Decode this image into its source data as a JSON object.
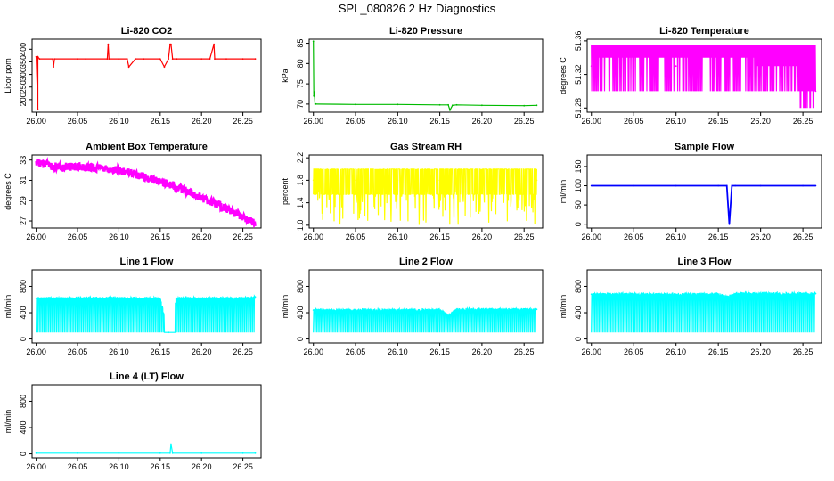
{
  "figure": {
    "title": "SPL_080826  2 Hz Diagnostics"
  },
  "chart_data": [
    {
      "type": "line",
      "title": "Li-820 CO2",
      "xlabel": "",
      "ylabel": "Licor ppm",
      "color": "#ff0000",
      "xlim": [
        25.995,
        26.272
      ],
      "ylim": [
        150,
        440
      ],
      "xticks": [
        26.0,
        26.05,
        26.1,
        26.15,
        26.2,
        26.25
      ],
      "xtick_labels": [
        "26.00",
        "26.05",
        "26.10",
        "26.15",
        "26.20",
        "26.25"
      ],
      "yticks": [
        200,
        250,
        300,
        350,
        400
      ],
      "ytick_labels": [
        "200",
        "250",
        "300",
        "350",
        "400"
      ],
      "series": [
        {
          "name": "CO2",
          "x": [
            26.0,
            26.002,
            26.002,
            26.004,
            26.02,
            26.021,
            26.022,
            26.05,
            26.06,
            26.086,
            26.087,
            26.088,
            26.1,
            26.11,
            26.112,
            26.12,
            26.13,
            26.15,
            26.155,
            26.16,
            26.162,
            26.163,
            26.165,
            26.17,
            26.2,
            26.21,
            26.215,
            26.216,
            26.23,
            26.25,
            26.265
          ],
          "y": [
            370,
            160,
            370,
            362,
            362,
            330,
            362,
            362,
            362,
            362,
            420,
            362,
            362,
            362,
            330,
            362,
            362,
            362,
            330,
            362,
            420,
            420,
            362,
            362,
            362,
            362,
            420,
            362,
            362,
            362,
            362
          ]
        }
      ]
    },
    {
      "type": "line",
      "title": "Li-820 Pressure",
      "xlabel": "",
      "ylabel": "kPa",
      "color": "#00bb00",
      "xlim": [
        25.995,
        26.272
      ],
      "ylim": [
        68,
        86
      ],
      "xticks": [
        26.0,
        26.05,
        26.1,
        26.15,
        26.2,
        26.25
      ],
      "xtick_labels": [
        "26.00",
        "26.05",
        "26.10",
        "26.15",
        "26.20",
        "26.25"
      ],
      "yticks": [
        70,
        75,
        80,
        85
      ],
      "ytick_labels": [
        "70",
        "75",
        "80",
        "85"
      ],
      "series": [
        {
          "name": "Pressure",
          "x": [
            26.0,
            26.0005,
            26.001,
            26.002,
            26.003,
            26.05,
            26.1,
            26.15,
            26.16,
            26.162,
            26.165,
            26.17,
            26.2,
            26.25,
            26.265
          ],
          "y": [
            85.5,
            72,
            73,
            70,
            70,
            69.9,
            69.9,
            69.8,
            69.8,
            68.5,
            69.7,
            69.8,
            69.7,
            69.6,
            69.7
          ]
        }
      ]
    },
    {
      "type": "line",
      "title": "Li-820 Temperature",
      "xlabel": "",
      "ylabel": "degrees C",
      "color": "#ff00ff",
      "xlim": [
        25.995,
        26.272
      ],
      "ylim": [
        51.275,
        51.362
      ],
      "xticks": [
        26.0,
        26.05,
        26.1,
        26.15,
        26.2,
        26.25
      ],
      "xtick_labels": [
        "26.00",
        "26.05",
        "26.10",
        "26.15",
        "26.20",
        "26.25"
      ],
      "yticks": [
        51.28,
        51.32,
        51.36
      ],
      "ytick_labels": [
        "51.28",
        "51.32",
        "51.36"
      ],
      "series": [
        {
          "name": "Temperature",
          "x": [
            26.0,
            26.05,
            26.1,
            26.15,
            26.2,
            26.25,
            26.265
          ],
          "y": [
            51.33,
            51.33,
            51.33,
            51.33,
            51.32,
            51.31,
            51.3
          ]
        }
      ]
    },
    {
      "type": "line",
      "title": "Ambient Box Temperature",
      "xlabel": "",
      "ylabel": "degrees C",
      "color": "#ff00ff",
      "xlim": [
        25.995,
        26.272
      ],
      "ylim": [
        26.3,
        33.5
      ],
      "xticks": [
        26.0,
        26.05,
        26.1,
        26.15,
        26.2,
        26.25
      ],
      "xtick_labels": [
        "26.00",
        "26.05",
        "26.10",
        "26.15",
        "26.20",
        "26.25"
      ],
      "yticks": [
        27,
        29,
        31,
        33
      ],
      "ytick_labels": [
        "27",
        "29",
        "31",
        "33"
      ],
      "series": [
        {
          "name": "Box Temperature",
          "x": [
            26.0,
            26.02,
            26.05,
            26.08,
            26.1,
            26.12,
            26.15,
            26.18,
            26.2,
            26.22,
            26.24,
            26.265
          ],
          "y": [
            32.8,
            32.4,
            32.3,
            32.2,
            32.0,
            31.6,
            30.9,
            30.0,
            29.3,
            28.6,
            27.8,
            26.8
          ]
        }
      ]
    },
    {
      "type": "line",
      "title": "Gas Stream RH",
      "xlabel": "",
      "ylabel": "percent",
      "color": "#ffff00",
      "xlim": [
        25.995,
        26.272
      ],
      "ylim": [
        0.95,
        2.25
      ],
      "xticks": [
        26.0,
        26.05,
        26.1,
        26.15,
        26.2,
        26.25
      ],
      "xtick_labels": [
        "26.00",
        "26.05",
        "26.10",
        "26.15",
        "26.20",
        "26.25"
      ],
      "yticks": [
        1.0,
        1.4,
        1.8,
        2.2
      ],
      "ytick_labels": [
        "1.0",
        "1.4",
        "1.8",
        "2.2"
      ],
      "series": [
        {
          "name": "RH",
          "x": [
            26.0,
            26.05,
            26.1,
            26.15,
            26.2,
            26.25,
            26.265
          ],
          "y": [
            1.8,
            1.8,
            1.8,
            1.8,
            1.8,
            1.8,
            1.8
          ]
        }
      ]
    },
    {
      "type": "line",
      "title": "Sample Flow",
      "xlabel": "",
      "ylabel": "ml/min",
      "color": "#0000ff",
      "xlim": [
        25.995,
        26.272
      ],
      "ylim": [
        -10,
        180
      ],
      "xticks": [
        26.0,
        26.05,
        26.1,
        26.15,
        26.2,
        26.25
      ],
      "xtick_labels": [
        "26.00",
        "26.05",
        "26.10",
        "26.15",
        "26.20",
        "26.25"
      ],
      "yticks": [
        0,
        50,
        100,
        150
      ],
      "ytick_labels": [
        "0",
        "50",
        "100",
        "150"
      ],
      "series": [
        {
          "name": "Sample Flow",
          "x": [
            26.0,
            26.05,
            26.1,
            26.15,
            26.16,
            26.163,
            26.166,
            26.17,
            26.2,
            26.25,
            26.265
          ],
          "y": [
            100,
            100,
            100,
            100,
            100,
            0,
            100,
            100,
            100,
            100,
            100
          ]
        }
      ]
    },
    {
      "type": "line",
      "title": "Line 1 Flow",
      "xlabel": "",
      "ylabel": "ml/min",
      "color": "#00ffff",
      "xlim": [
        25.995,
        26.272
      ],
      "ylim": [
        -60,
        1050
      ],
      "xticks": [
        26.0,
        26.05,
        26.1,
        26.15,
        26.2,
        26.25
      ],
      "xtick_labels": [
        "26.00",
        "26.05",
        "26.10",
        "26.15",
        "26.20",
        "26.25"
      ],
      "yticks": [
        0,
        400,
        800
      ],
      "ytick_labels": [
        "0",
        "400",
        "800"
      ],
      "series": [
        {
          "name": "Line 1",
          "x": [
            26.0,
            26.05,
            26.1,
            26.15,
            26.16,
            26.17,
            26.2,
            26.25,
            26.265
          ],
          "y": [
            620,
            620,
            620,
            620,
            100,
            620,
            620,
            620,
            640
          ]
        }
      ]
    },
    {
      "type": "line",
      "title": "Line 2 Flow",
      "xlabel": "",
      "ylabel": "ml/min",
      "color": "#00ffff",
      "xlim": [
        25.995,
        26.272
      ],
      "ylim": [
        -60,
        1050
      ],
      "xticks": [
        26.0,
        26.05,
        26.1,
        26.15,
        26.2,
        26.25
      ],
      "xtick_labels": [
        "26.00",
        "26.05",
        "26.10",
        "26.15",
        "26.20",
        "26.25"
      ],
      "yticks": [
        0,
        400,
        800
      ],
      "ytick_labels": [
        "0",
        "400",
        "800"
      ],
      "series": [
        {
          "name": "Line 2",
          "x": [
            26.0,
            26.05,
            26.1,
            26.15,
            26.16,
            26.17,
            26.2,
            26.25,
            26.265
          ],
          "y": [
            440,
            440,
            440,
            440,
            360,
            450,
            450,
            450,
            450
          ]
        }
      ]
    },
    {
      "type": "line",
      "title": "Line 3 Flow",
      "xlabel": "",
      "ylabel": "ml/min",
      "color": "#00ffff",
      "xlim": [
        25.995,
        26.272
      ],
      "ylim": [
        -60,
        1050
      ],
      "xticks": [
        26.0,
        26.05,
        26.1,
        26.15,
        26.2,
        26.25
      ],
      "xtick_labels": [
        "26.00",
        "26.05",
        "26.10",
        "26.15",
        "26.20",
        "26.25"
      ],
      "yticks": [
        0,
        400,
        800
      ],
      "ytick_labels": [
        "0",
        "400",
        "800"
      ],
      "series": [
        {
          "name": "Line 3",
          "x": [
            26.0,
            26.05,
            26.1,
            26.15,
            26.16,
            26.17,
            26.2,
            26.25,
            26.265
          ],
          "y": [
            680,
            680,
            680,
            680,
            640,
            690,
            690,
            690,
            690
          ]
        }
      ]
    },
    {
      "type": "line",
      "title": "Line 4 (LT) Flow",
      "xlabel": "",
      "ylabel": "ml/min",
      "color": "#00ffff",
      "xlim": [
        25.995,
        26.272
      ],
      "ylim": [
        -60,
        1050
      ],
      "xticks": [
        26.0,
        26.05,
        26.1,
        26.15,
        26.2,
        26.25
      ],
      "xtick_labels": [
        "26.00",
        "26.05",
        "26.10",
        "26.15",
        "26.20",
        "26.25"
      ],
      "yticks": [
        0,
        400,
        800
      ],
      "ytick_labels": [
        "0",
        "400",
        "800"
      ],
      "series": [
        {
          "name": "Line 4",
          "x": [
            26.0,
            26.05,
            26.1,
            26.15,
            26.162,
            26.163,
            26.165,
            26.2,
            26.25,
            26.265
          ],
          "y": [
            10,
            10,
            10,
            10,
            10,
            150,
            10,
            10,
            10,
            10
          ]
        }
      ]
    }
  ]
}
